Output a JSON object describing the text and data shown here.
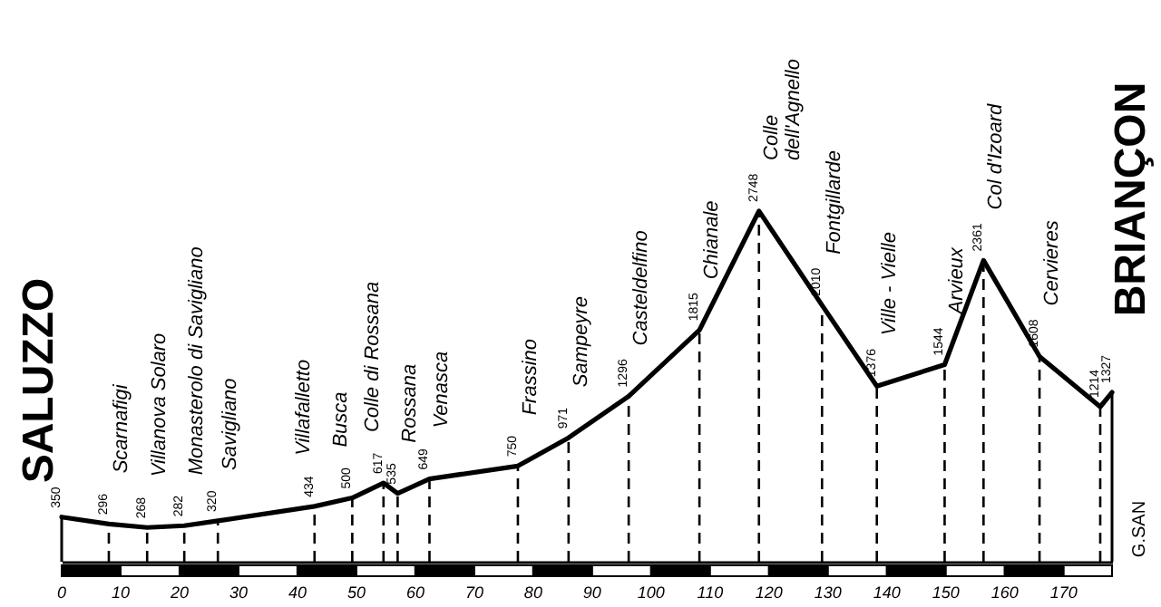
{
  "chart_data": {
    "type": "line",
    "x": [
      0,
      8,
      14.5,
      20.8,
      26.5,
      42.9,
      49.3,
      54.6,
      57,
      62.4,
      77.4,
      86,
      96.2,
      108.2,
      118.3,
      129,
      138.3,
      149.8,
      156.4,
      165.9,
      176.2,
      178.2
    ],
    "series": [
      {
        "color": "#000000",
        "values": [
          350,
          296,
          268,
          282,
          320,
          434,
          500,
          617,
          535,
          649,
          750,
          971,
          1296,
          1815,
          2748,
          2010,
          1376,
          1544,
          2361,
          1608,
          1214,
          1327
        ]
      }
    ],
    "data_labels": true,
    "xlim": [
      0,
      178.2
    ],
    "xticks": [
      0,
      10,
      20,
      30,
      40,
      50,
      60,
      70,
      80,
      90,
      100,
      110,
      120,
      130,
      140,
      150,
      160,
      170
    ],
    "marker": "none",
    "annotations": [
      "SALUZZO",
      "BRIANÇON",
      "G.SAN",
      {
        "text": "Scarnafigi",
        "x": 8,
        "y": 296
      },
      {
        "text": "Villanova Solaro",
        "x": 14.5,
        "y": 268
      },
      {
        "text": "Monasterolo di Savigliano",
        "x": 20.8,
        "y": 282
      },
      {
        "text": "Savigliano",
        "x": 26.5,
        "y": 320
      },
      {
        "text": "Villafalletto",
        "x": 42.9,
        "y": 434
      },
      {
        "text": "Busca",
        "x": 49.3,
        "y": 500
      },
      {
        "text": "Colle di Rossana",
        "x": 54.6,
        "y": 617
      },
      {
        "text": "Rossana",
        "x": 57,
        "y": 535
      },
      {
        "text": "Venasca",
        "x": 62.4,
        "y": 649
      },
      {
        "text": "Frassino",
        "x": 77.4,
        "y": 750
      },
      {
        "text": "Sampeyre",
        "x": 86,
        "y": 971
      },
      {
        "text": "Casteldelfino",
        "x": 96.2,
        "y": 1296
      },
      {
        "text": "Chianale",
        "x": 108.2,
        "y": 1815
      },
      {
        "text": "Colle\ndell'Agnello",
        "x": 118.3,
        "y": 2748
      },
      {
        "text": "Fontgillarde",
        "x": 129,
        "y": 2010
      },
      {
        "text": "Ville - Vielle",
        "x": 138.3,
        "y": 1376
      },
      {
        "text": "Arvieux",
        "x": 149.8,
        "y": 1544
      },
      {
        "text": "Col d'Izoard",
        "x": 156.4,
        "y": 2361
      },
      {
        "text": "Cervieres",
        "x": 165.9,
        "y": 1608
      }
    ]
  }
}
